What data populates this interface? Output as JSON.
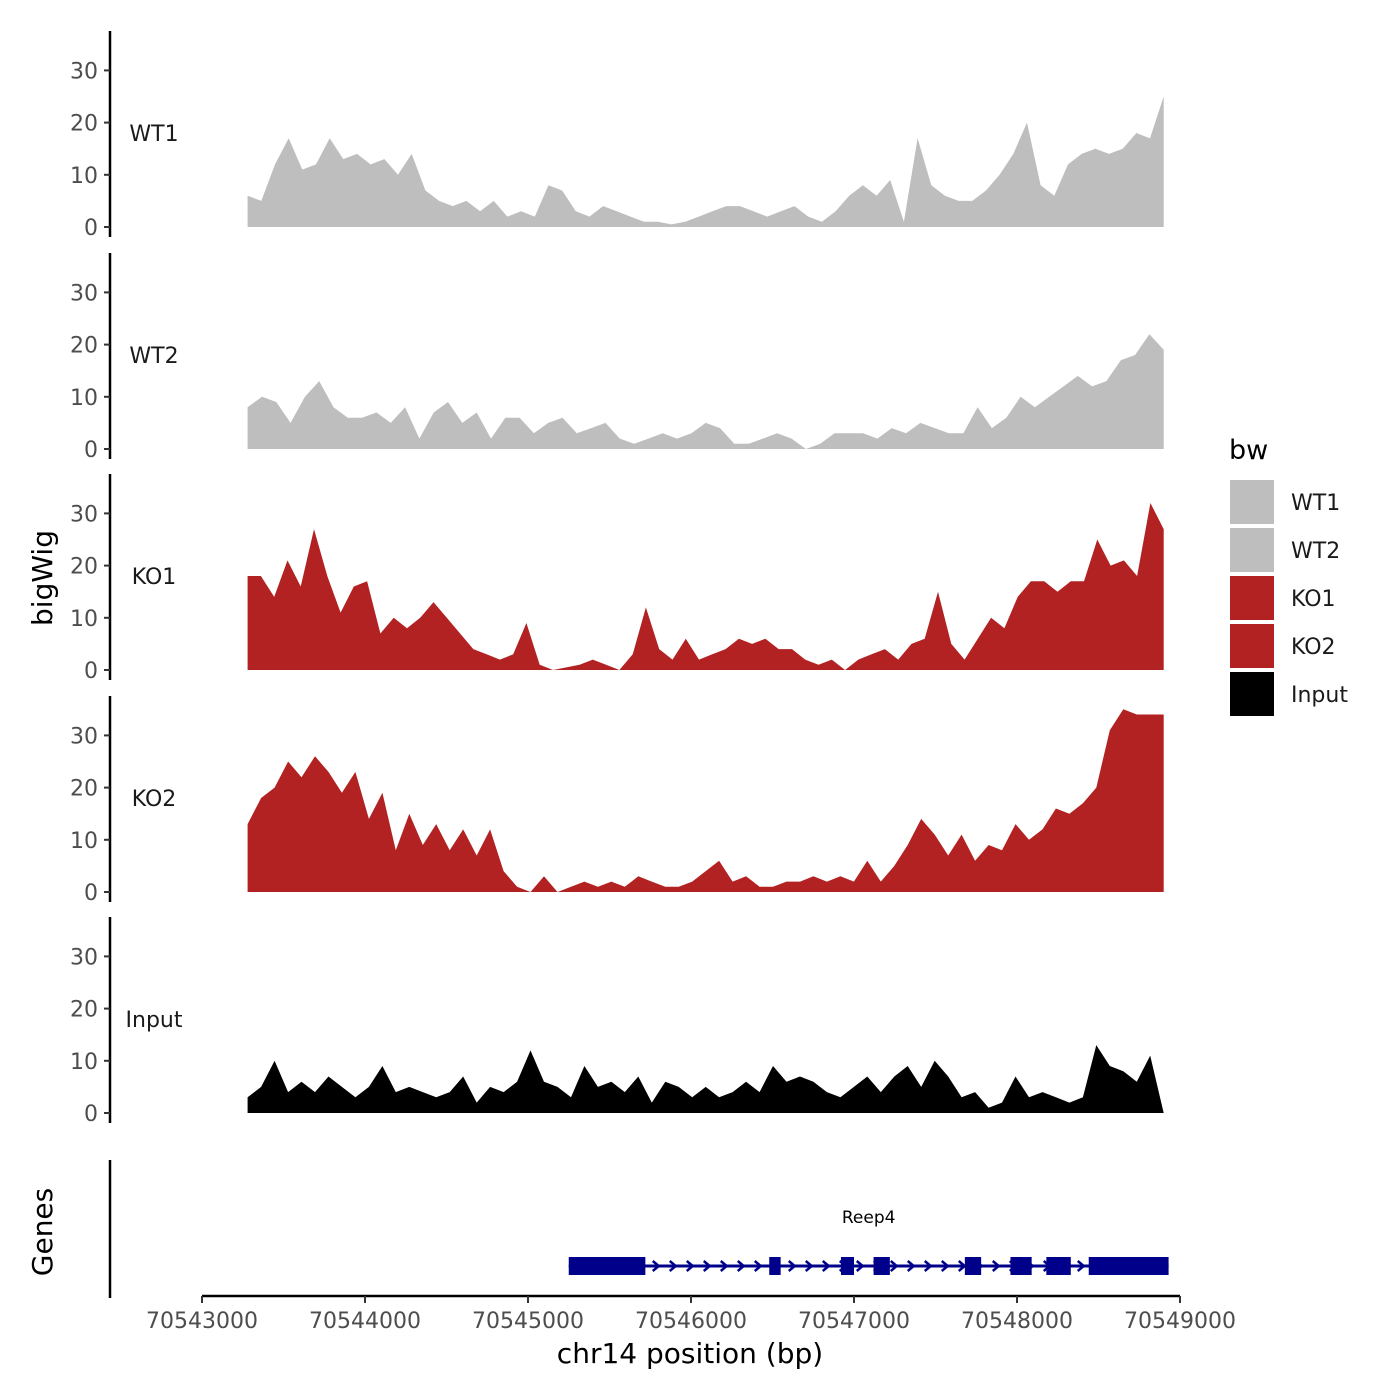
{
  "chart_data": {
    "type": "area",
    "ylabel": "bigWig",
    "xlabel": "chr14 position (bp)",
    "legend_title": "bw",
    "legend_position": "right",
    "y_ticks": [
      "0",
      "10",
      "20",
      "30"
    ],
    "ylim": [
      0,
      38
    ],
    "xlim": [
      70543000,
      70549000
    ],
    "x_ticks": [
      "70543000",
      "70544000",
      "70545000",
      "70546000",
      "70547000",
      "70548000",
      "70549000"
    ],
    "x_tick_values": [
      70543000,
      70544000,
      70545000,
      70546000,
      70547000,
      70548000,
      70549000
    ],
    "series": [
      {
        "name": "WT1",
        "color": "#bebebe",
        "x_start": 70543280,
        "x_end": 70548900,
        "values": [
          6,
          5,
          12,
          17,
          11,
          12,
          17,
          13,
          14,
          12,
          13,
          10,
          14,
          7,
          5,
          4,
          5,
          3,
          5,
          2,
          3,
          2,
          8,
          7,
          3,
          2,
          4,
          3,
          2,
          1,
          1,
          0.5,
          1,
          2,
          3,
          4,
          4,
          3,
          2,
          3,
          4,
          2,
          1,
          3,
          6,
          8,
          6,
          9,
          1,
          17,
          8,
          6,
          5,
          5,
          7,
          10,
          14,
          20,
          8,
          6,
          12,
          14,
          15,
          14,
          15,
          18,
          17,
          25
        ]
      },
      {
        "name": "WT2",
        "color": "#bebebe",
        "x_start": 70543280,
        "x_end": 70548900,
        "values": [
          8,
          10,
          9,
          5,
          10,
          13,
          8,
          6,
          6,
          7,
          5,
          8,
          2,
          7,
          9,
          5,
          7,
          2,
          6,
          6,
          3,
          5,
          6,
          3,
          4,
          5,
          2,
          1,
          2,
          3,
          2,
          3,
          5,
          4,
          1,
          1,
          2,
          3,
          2,
          0,
          1,
          3,
          3,
          3,
          2,
          4,
          3,
          5,
          4,
          3,
          3,
          8,
          4,
          6,
          10,
          8,
          10,
          12,
          14,
          12,
          13,
          17,
          18,
          22,
          19
        ]
      },
      {
        "name": "KO1",
        "color": "#b22222",
        "x_start": 70543280,
        "x_end": 70548900,
        "values": [
          18,
          18,
          14,
          21,
          16,
          27,
          18,
          11,
          16,
          17,
          7,
          10,
          8,
          10,
          13,
          10,
          7,
          4,
          3,
          2,
          3,
          9,
          1,
          0,
          0.5,
          1,
          2,
          1,
          0,
          3,
          12,
          4,
          2,
          6,
          2,
          3,
          4,
          6,
          5,
          6,
          4,
          4,
          2,
          1,
          2,
          0,
          2,
          3,
          4,
          2,
          5,
          6,
          15,
          5,
          2,
          6,
          10,
          8,
          14,
          17,
          17,
          15,
          17,
          17,
          25,
          20,
          21,
          18,
          32,
          27
        ]
      },
      {
        "name": "KO2",
        "color": "#b22222",
        "x_start": 70543280,
        "x_end": 70548900,
        "values": [
          13,
          18,
          20,
          25,
          22,
          26,
          23,
          19,
          23,
          14,
          19,
          8,
          15,
          9,
          13,
          8,
          12,
          7,
          12,
          4,
          1,
          0,
          3,
          0,
          1,
          2,
          1,
          2,
          1,
          3,
          2,
          1,
          1,
          2,
          4,
          6,
          2,
          3,
          1,
          1,
          2,
          2,
          3,
          2,
          3,
          2,
          6,
          2,
          5,
          9,
          14,
          11,
          7,
          11,
          6,
          9,
          8,
          13,
          10,
          12,
          16,
          15,
          17,
          20,
          31,
          35,
          34,
          34,
          34
        ]
      },
      {
        "name": "Input",
        "color": "#000000",
        "x_start": 70543280,
        "x_end": 70548900,
        "values": [
          3,
          5,
          10,
          4,
          6,
          4,
          7,
          5,
          3,
          5,
          9,
          4,
          5,
          4,
          3,
          4,
          7,
          2,
          5,
          4,
          6,
          12,
          6,
          5,
          3,
          9,
          5,
          6,
          4,
          7,
          2,
          6,
          5,
          3,
          5,
          3,
          4,
          6,
          4,
          9,
          6,
          7,
          6,
          4,
          3,
          5,
          7,
          4,
          7,
          9,
          5,
          10,
          7,
          3,
          4,
          1,
          2,
          7,
          3,
          4,
          3,
          2,
          3,
          13,
          9,
          8,
          6,
          11,
          0
        ]
      }
    ],
    "genes": [
      {
        "name": "Reep4",
        "strand": "+",
        "color": "#00008b",
        "start": 70545250,
        "end": 70548930,
        "exons": [
          [
            70545250,
            70545720
          ],
          [
            70546480,
            70546550
          ],
          [
            70546920,
            70547000
          ],
          [
            70547120,
            70547220
          ],
          [
            70547680,
            70547780
          ],
          [
            70547960,
            70548090
          ],
          [
            70548180,
            70548330
          ],
          [
            70548440,
            70548930
          ]
        ]
      }
    ],
    "genes_label": "Genes"
  }
}
